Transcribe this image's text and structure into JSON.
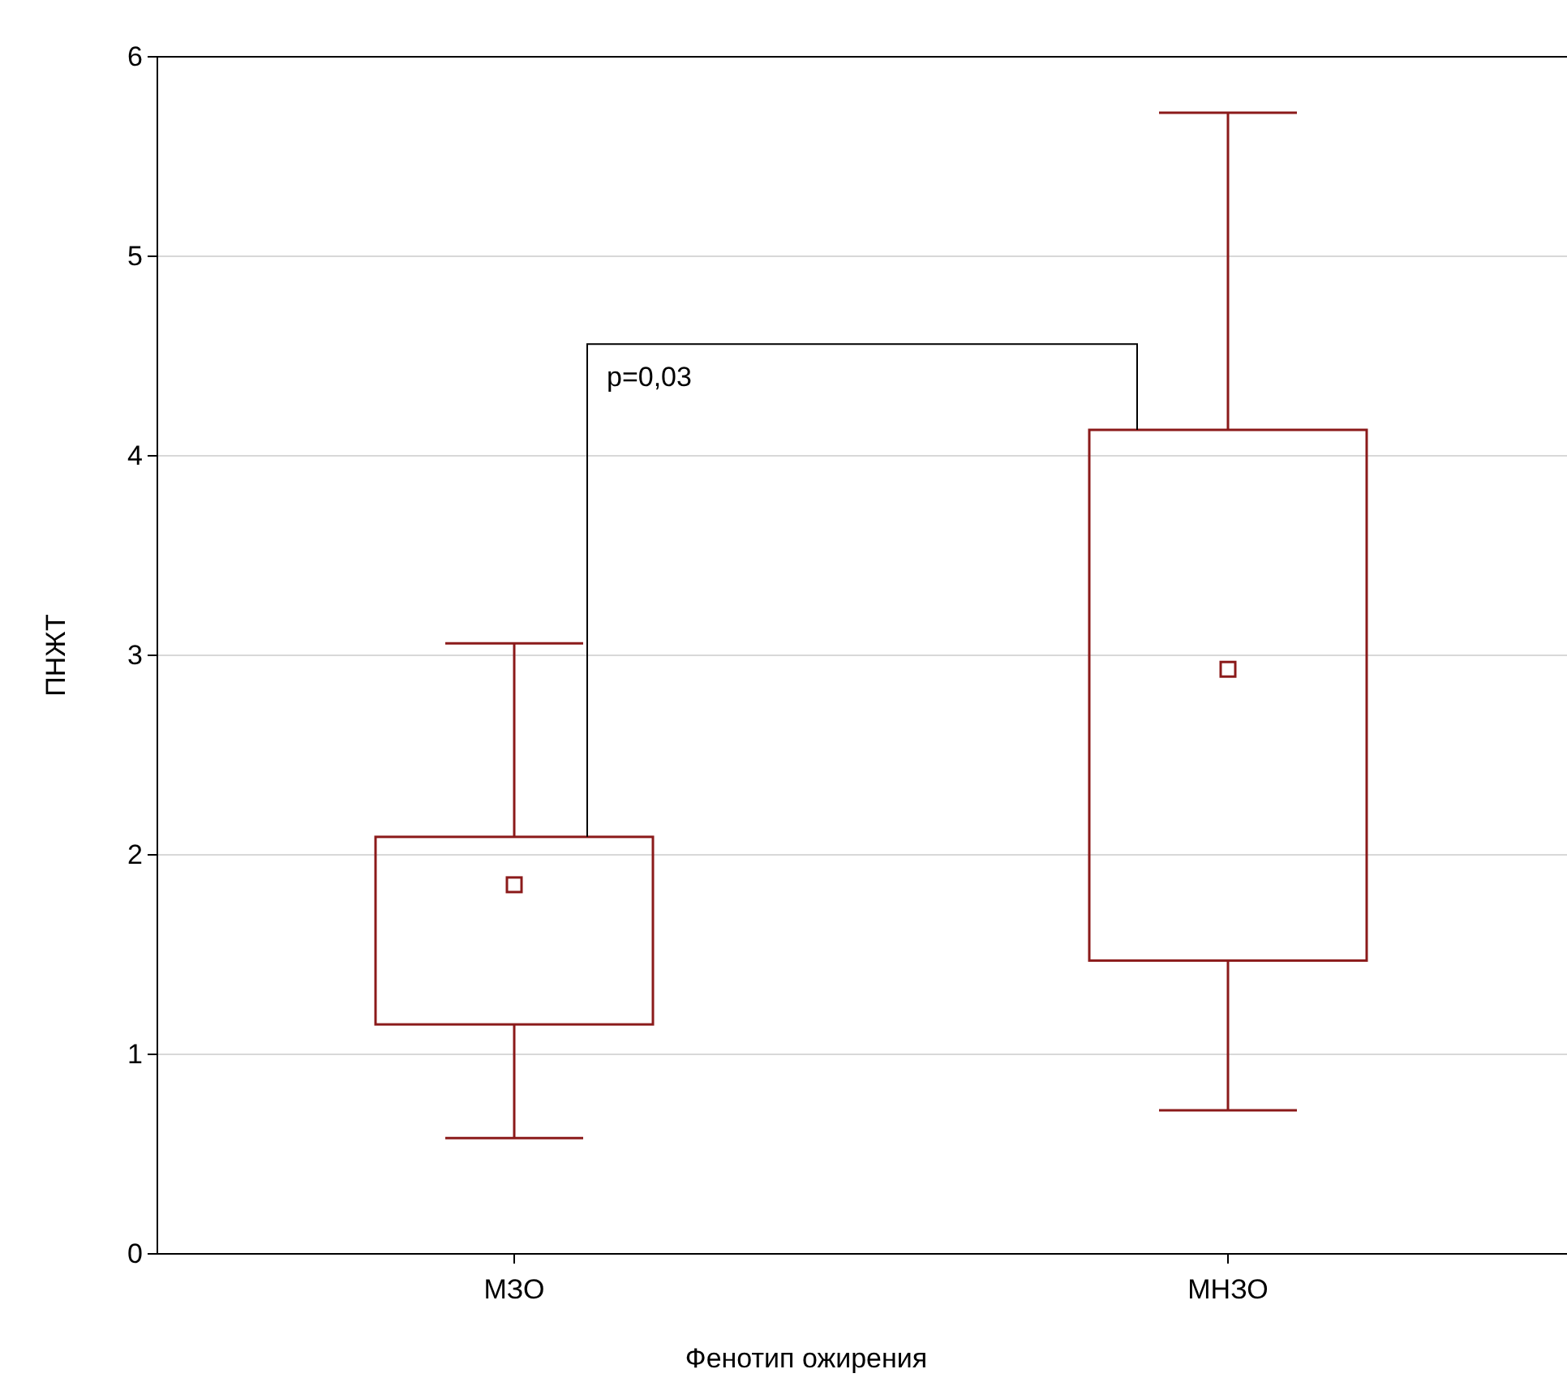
{
  "chart_data": {
    "type": "box",
    "xlabel": "Фенотип ожирения",
    "ylabel": "ПНЖТ",
    "categories": [
      "МЗО",
      "МНЗО"
    ],
    "boxes": [
      {
        "low": 0.58,
        "q1": 1.15,
        "median": 1.85,
        "q3": 2.09,
        "high": 3.06
      },
      {
        "low": 0.72,
        "q1": 1.47,
        "median": 2.93,
        "q3": 4.13,
        "high": 5.72
      }
    ],
    "color": "#8b1a1a",
    "ylim": [
      0,
      6
    ],
    "yticks": [
      0,
      1,
      2,
      3,
      4,
      5,
      6
    ],
    "grid": "y",
    "annotations": [
      "p=0,03"
    ]
  }
}
